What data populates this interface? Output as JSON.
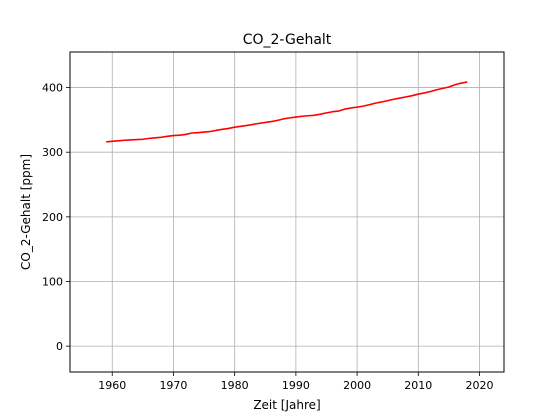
{
  "chart_data": {
    "type": "line",
    "title": "CO_2-Gehalt",
    "xlabel": "Zeit [Jahre]",
    "ylabel": "CO_2-Gehalt [ppm]",
    "xlim": [
      1953.1,
      2024.0
    ],
    "ylim": [
      -40,
      455
    ],
    "xticks": [
      1960,
      1970,
      1980,
      1990,
      2000,
      2010,
      2020
    ],
    "yticks": [
      0,
      100,
      200,
      300,
      400
    ],
    "xtick_labels": [
      "1960",
      "1970",
      "1980",
      "1990",
      "2000",
      "2010",
      "2020"
    ],
    "ytick_labels": [
      "0",
      "100",
      "200",
      "300",
      "400"
    ],
    "grid": true,
    "series": [
      {
        "color": "#ff0000",
        "x": [
          1959,
          1960,
          1961,
          1962,
          1963,
          1964,
          1965,
          1966,
          1967,
          1968,
          1969,
          1970,
          1971,
          1972,
          1973,
          1974,
          1975,
          1976,
          1977,
          1978,
          1979,
          1980,
          1981,
          1982,
          1983,
          1984,
          1985,
          1986,
          1987,
          1988,
          1989,
          1990,
          1991,
          1992,
          1993,
          1994,
          1995,
          1996,
          1997,
          1998,
          1999,
          2000,
          2001,
          2002,
          2003,
          2004,
          2005,
          2006,
          2007,
          2008,
          2009,
          2010,
          2011,
          2012,
          2013,
          2014,
          2015,
          2016,
          2017,
          2018
        ],
        "y": [
          316.0,
          316.9,
          317.6,
          318.5,
          319.0,
          319.6,
          320.0,
          321.4,
          322.2,
          323.1,
          324.6,
          325.7,
          326.3,
          327.5,
          329.7,
          330.2,
          331.1,
          332.0,
          333.8,
          335.4,
          336.8,
          338.7,
          340.1,
          341.4,
          343.0,
          344.6,
          346.0,
          347.4,
          349.2,
          351.6,
          353.1,
          354.4,
          355.6,
          356.4,
          357.1,
          358.8,
          360.8,
          362.6,
          363.7,
          366.7,
          368.4,
          369.7,
          371.3,
          373.4,
          375.9,
          377.7,
          379.8,
          381.9,
          383.8,
          385.6,
          387.4,
          389.9,
          391.7,
          393.9,
          396.6,
          398.7,
          400.9,
          404.3,
          406.8,
          408.7
        ]
      }
    ]
  }
}
